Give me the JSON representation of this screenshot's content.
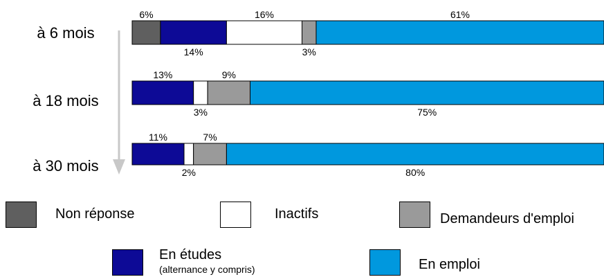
{
  "chart_data": {
    "type": "bar",
    "orientation": "horizontal",
    "stacked": true,
    "categories": [
      "à 6 mois",
      "à 18 mois",
      "à 30 mois"
    ],
    "series": [
      {
        "name": "Non réponse",
        "color": "#5f5f5f",
        "values": [
          6,
          0,
          0
        ]
      },
      {
        "name": "En études",
        "color": "#0d0a96",
        "values": [
          14,
          13,
          11
        ]
      },
      {
        "name": "Inactifs",
        "color": "#ffffff",
        "values": [
          16,
          3,
          2
        ]
      },
      {
        "name": "Demandeurs d'emploi",
        "color": "#9a9a9a",
        "values": [
          3,
          9,
          7
        ]
      },
      {
        "name": "En emploi",
        "color": "#0098de",
        "values": [
          61,
          75,
          80
        ]
      }
    ],
    "data_labels": [
      [
        {
          "series": "Non réponse",
          "text": "6%",
          "pos": "above"
        },
        {
          "series": "En études",
          "text": "14%",
          "pos": "below"
        },
        {
          "series": "Inactifs",
          "text": "16%",
          "pos": "above"
        },
        {
          "series": "Demandeurs d'emploi",
          "text": "3%",
          "pos": "below"
        },
        {
          "series": "En emploi",
          "text": "61%",
          "pos": "above"
        }
      ],
      [
        {
          "series": "En études",
          "text": "13%",
          "pos": "above"
        },
        {
          "series": "Inactifs",
          "text": "3%",
          "pos": "below"
        },
        {
          "series": "Demandeurs d'emploi",
          "text": "9%",
          "pos": "above"
        },
        {
          "series": "En emploi",
          "text": "75%",
          "pos": "below"
        }
      ],
      [
        {
          "series": "En études",
          "text": "11%",
          "pos": "above"
        },
        {
          "series": "Inactifs",
          "text": "2%",
          "pos": "below"
        },
        {
          "series": "Demandeurs d'emploi",
          "text": "7%",
          "pos": "above"
        },
        {
          "series": "En emploi",
          "text": "80%",
          "pos": "below"
        }
      ]
    ],
    "xlim": [
      0,
      100
    ],
    "grid": false,
    "legend_position": "bottom"
  },
  "legend": {
    "non_reponse": "Non réponse",
    "inactifs": "Inactifs",
    "demandeurs": "Demandeurs d'emploi",
    "en_etudes": "En études",
    "en_etudes_note": "(alternance y compris)",
    "en_emploi": "En emploi"
  },
  "colors": {
    "non_reponse": "#5f5f5f",
    "inactifs": "#ffffff",
    "demandeurs": "#9a9a9a",
    "en_etudes": "#0d0a96",
    "en_emploi": "#0098de",
    "arrow": "#c8c8c8"
  }
}
